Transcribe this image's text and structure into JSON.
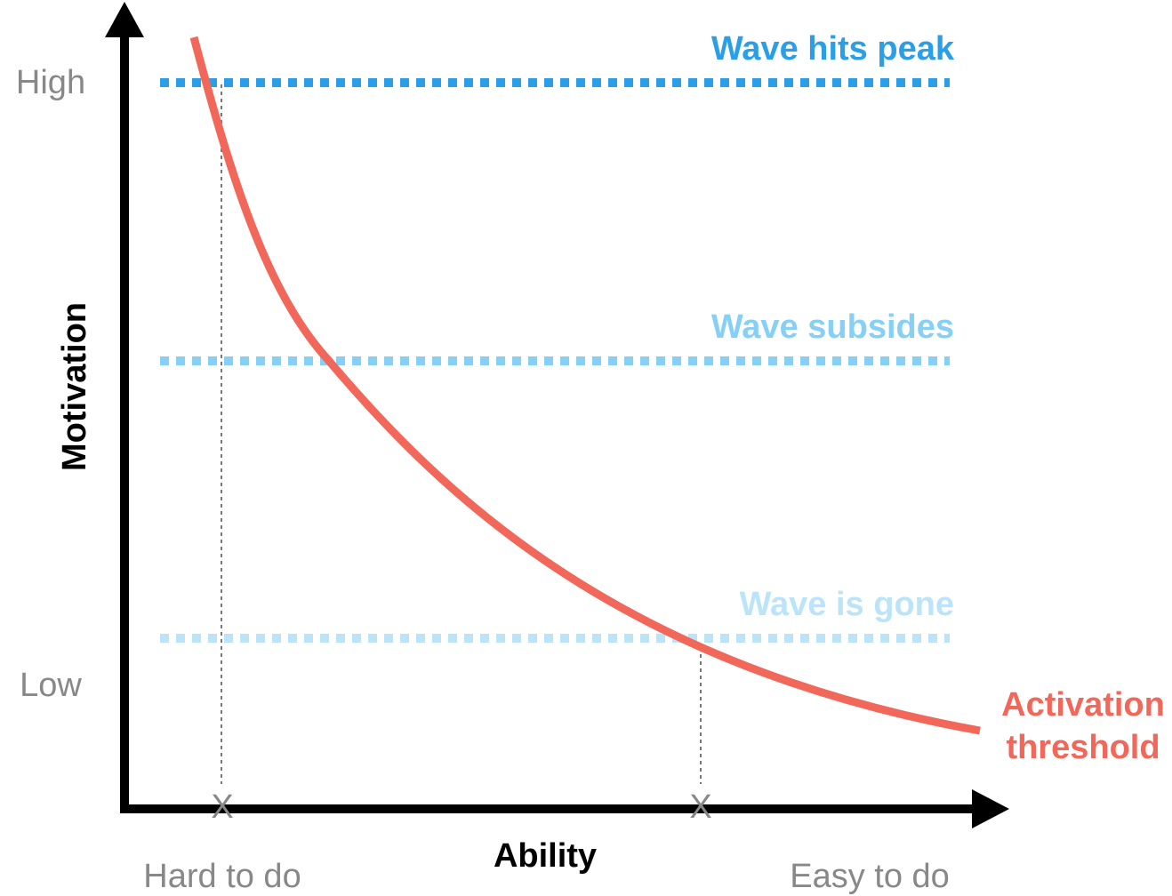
{
  "axes": {
    "y_label": "Motivation",
    "x_label": "Ability",
    "y_high": "High",
    "y_low": "Low",
    "x_low": "Hard to do",
    "x_high": "Easy to do"
  },
  "levels": [
    {
      "label": "Wave hits peak",
      "color": "#2a9fe8"
    },
    {
      "label": "Wave subsides",
      "color": "#86d0f6"
    },
    {
      "label": "Wave is gone",
      "color": "#bce4f8"
    }
  ],
  "curve": {
    "label_lines": [
      "Activation",
      "threshold"
    ],
    "color": "#f1675a"
  },
  "markers": [
    "X",
    "X"
  ]
}
